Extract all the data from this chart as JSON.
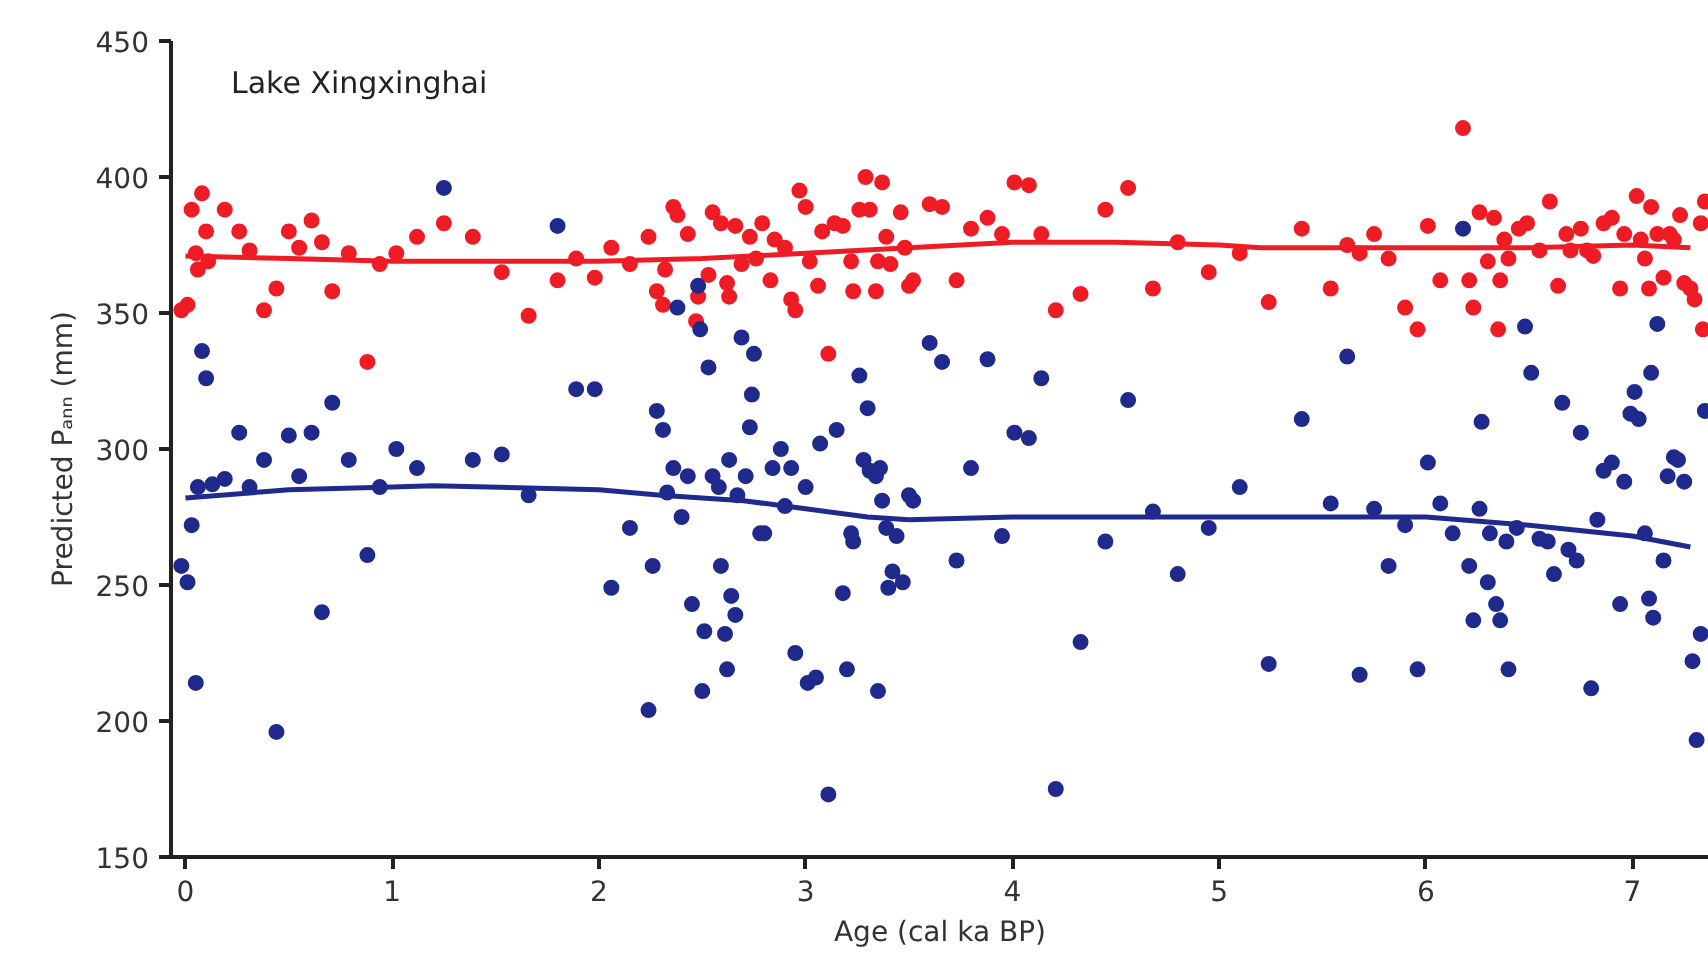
{
  "chart_data": {
    "type": "scatter",
    "annotations": [
      "Lake Xingxinghai"
    ],
    "xlabel": "Age (cal ka BP)",
    "ylabel": "Predicted Pₐₙₙ (mm)",
    "xlim": [
      -0.07,
      7.37
    ],
    "ylim": [
      150,
      450
    ],
    "xticks": [
      0,
      1,
      2,
      3,
      4,
      5,
      6,
      7
    ],
    "yticks": [
      150,
      200,
      250,
      300,
      350,
      400,
      450
    ],
    "grid": false,
    "series": [
      {
        "marker": "circle",
        "color": "#ee1c25",
        "x": [
          -0.02,
          0.01,
          0.03,
          0.08,
          0.05,
          0.06,
          0.1,
          0.11,
          0.19,
          0.26,
          0.31,
          0.38,
          0.44,
          0.5,
          0.55,
          0.61,
          0.66,
          0.71,
          0.79,
          0.88,
          0.94,
          1.02,
          1.12,
          1.25,
          1.39,
          1.53,
          1.66,
          1.8,
          1.89,
          1.98,
          2.06,
          2.15,
          2.24,
          2.28,
          2.31,
          2.36,
          2.38,
          2.32,
          2.43,
          2.47,
          2.48,
          2.53,
          2.55,
          2.59,
          2.62,
          2.63,
          2.66,
          2.69,
          2.73,
          2.76,
          2.79,
          2.83,
          2.85,
          2.9,
          2.93,
          2.95,
          2.97,
          3.0,
          3.02,
          3.06,
          3.08,
          3.11,
          3.14,
          3.18,
          3.22,
          3.23,
          3.26,
          3.29,
          3.31,
          3.34,
          3.35,
          3.37,
          3.39,
          3.41,
          3.46,
          3.48,
          3.5,
          3.52,
          3.6,
          3.66,
          3.73,
          3.8,
          3.88,
          3.95,
          4.01,
          4.08,
          4.14,
          4.21,
          4.33,
          4.45,
          4.56,
          4.68,
          4.8,
          4.95,
          5.1,
          5.24,
          5.4,
          5.54,
          5.62,
          5.68,
          5.75,
          5.82,
          5.9,
          5.96,
          6.01,
          6.07,
          6.18,
          6.21,
          6.23,
          6.26,
          6.3,
          6.33,
          6.36,
          6.38,
          6.4,
          6.35,
          6.45,
          6.49,
          6.55,
          6.6,
          6.64,
          6.68,
          6.7,
          6.75,
          6.78,
          6.81,
          6.86,
          6.9,
          6.94,
          6.96,
          7.02,
          7.04,
          7.06,
          7.08,
          7.09,
          7.12,
          7.15,
          7.18,
          7.2,
          7.23,
          7.25,
          7.28,
          7.3,
          7.33,
          7.34,
          7.35
        ],
        "values": [
          351,
          353,
          388,
          394,
          372,
          366,
          380,
          369,
          388,
          380,
          373,
          351,
          359,
          380,
          374,
          384,
          376,
          358,
          372,
          332,
          368,
          372,
          378,
          383,
          378,
          365,
          349,
          362,
          370,
          363,
          374,
          368,
          378,
          358,
          353,
          389,
          386,
          366,
          379,
          347,
          356,
          364,
          387,
          383,
          361,
          356,
          382,
          368,
          378,
          370,
          383,
          362,
          377,
          374,
          355,
          351,
          395,
          389,
          369,
          360,
          380,
          335,
          383,
          382,
          369,
          358,
          388,
          400,
          388,
          358,
          369,
          398,
          378,
          368,
          387,
          374,
          360,
          362,
          390,
          389,
          362,
          381,
          385,
          379,
          398,
          397,
          379,
          351,
          357,
          388,
          396,
          359,
          376,
          365,
          372,
          354,
          381,
          359,
          375,
          372,
          379,
          370,
          352,
          344,
          382,
          362,
          418,
          362,
          352,
          387,
          369,
          385,
          362,
          377,
          370,
          344,
          381,
          383,
          373,
          391,
          360,
          379,
          373,
          381,
          373,
          371,
          383,
          385,
          359,
          379,
          393,
          377,
          370,
          359,
          389,
          379,
          363,
          379,
          377,
          386,
          361,
          359,
          355,
          383,
          344,
          391
        ]
      },
      {
        "marker": "circle",
        "color": "#1f2a8c",
        "x": [
          -0.02,
          0.01,
          0.03,
          0.05,
          0.08,
          0.1,
          0.06,
          0.13,
          0.19,
          0.26,
          0.31,
          0.38,
          0.44,
          0.5,
          0.55,
          0.61,
          0.66,
          0.71,
          0.79,
          0.88,
          0.94,
          1.02,
          1.12,
          1.25,
          1.39,
          1.53,
          1.66,
          1.8,
          1.89,
          1.98,
          2.06,
          2.15,
          2.24,
          2.26,
          2.28,
          2.31,
          2.33,
          2.36,
          2.38,
          2.4,
          2.43,
          2.45,
          2.48,
          2.49,
          2.5,
          2.51,
          2.53,
          2.55,
          2.58,
          2.59,
          2.61,
          2.62,
          2.63,
          2.64,
          2.66,
          2.67,
          2.69,
          2.71,
          2.73,
          2.74,
          2.75,
          2.78,
          2.8,
          2.84,
          2.88,
          2.9,
          2.93,
          2.95,
          3.0,
          3.01,
          3.05,
          3.07,
          3.11,
          3.15,
          3.18,
          3.2,
          3.22,
          3.23,
          3.26,
          3.28,
          3.3,
          3.31,
          3.34,
          3.35,
          3.36,
          3.37,
          3.39,
          3.4,
          3.42,
          3.44,
          3.47,
          3.5,
          3.52,
          3.6,
          3.66,
          3.73,
          3.8,
          3.88,
          3.95,
          4.01,
          4.08,
          4.14,
          4.21,
          4.33,
          4.45,
          4.56,
          4.68,
          4.8,
          4.95,
          5.1,
          5.24,
          5.4,
          5.54,
          5.62,
          5.68,
          5.75,
          5.82,
          5.9,
          5.96,
          6.01,
          6.07,
          6.13,
          6.18,
          6.21,
          6.23,
          6.26,
          6.27,
          6.3,
          6.31,
          6.34,
          6.36,
          6.39,
          6.4,
          6.44,
          6.48,
          6.51,
          6.55,
          6.59,
          6.62,
          6.66,
          6.69,
          6.73,
          6.75,
          6.8,
          6.83,
          6.86,
          6.9,
          6.94,
          6.96,
          6.99,
          7.01,
          7.03,
          7.06,
          7.08,
          7.09,
          7.1,
          7.12,
          7.15,
          7.17,
          7.2,
          7.22,
          7.25,
          7.29,
          7.31,
          7.33,
          7.35
        ],
        "values": [
          257,
          251,
          272,
          214,
          336,
          326,
          286,
          287,
          289,
          306,
          286,
          296,
          196,
          305,
          290,
          306,
          240,
          317,
          296,
          261,
          286,
          300,
          293,
          396,
          296,
          298,
          283,
          382,
          322,
          322,
          249,
          271,
          204,
          257,
          314,
          307,
          284,
          293,
          352,
          275,
          290,
          243,
          360,
          344,
          211,
          233,
          330,
          290,
          286,
          257,
          232,
          219,
          296,
          246,
          239,
          283,
          341,
          290,
          308,
          320,
          335,
          269,
          269,
          293,
          300,
          279,
          293,
          225,
          286,
          214,
          216,
          302,
          173,
          307,
          247,
          219,
          269,
          266,
          327,
          296,
          315,
          292,
          290,
          211,
          293,
          281,
          271,
          249,
          255,
          268,
          251,
          283,
          281,
          339,
          332,
          259,
          293,
          333,
          268,
          306,
          304,
          326,
          175,
          229,
          266,
          318,
          277,
          254,
          271,
          286,
          221,
          311,
          280,
          334,
          217,
          278,
          257,
          272,
          219,
          295,
          280,
          269,
          381,
          257,
          237,
          278,
          310,
          251,
          269,
          243,
          237,
          266,
          219,
          271,
          345,
          328,
          267,
          266,
          254,
          317,
          263,
          259,
          306,
          212,
          274,
          292,
          295,
          243,
          288,
          313,
          321,
          311,
          269,
          245,
          328,
          238,
          346,
          259,
          290,
          297,
          296,
          288,
          222,
          193,
          232,
          314
        ]
      },
      {
        "type": "line",
        "marker": "none",
        "color": "#ee1c25",
        "x": [
          0,
          0.5,
          1,
          1.5,
          2,
          2.5,
          3,
          3.5,
          4,
          4.5,
          5,
          5.2,
          6,
          6.5,
          7,
          7.28
        ],
        "values": [
          371,
          370,
          369,
          369,
          369,
          370,
          372,
          374,
          376,
          376,
          375,
          374,
          374,
          374,
          375,
          374
        ]
      },
      {
        "type": "line",
        "marker": "none",
        "color": "#1f2a8c",
        "x": [
          0,
          0.5,
          1,
          1.2,
          2,
          2.3,
          2.7,
          3,
          3.3,
          3.5,
          4,
          5,
          6,
          6.5,
          7,
          7.28
        ],
        "values": [
          282,
          285,
          286,
          286.5,
          285,
          283,
          281,
          278,
          275,
          274,
          275,
          275,
          275,
          272,
          268,
          264
        ]
      }
    ]
  }
}
